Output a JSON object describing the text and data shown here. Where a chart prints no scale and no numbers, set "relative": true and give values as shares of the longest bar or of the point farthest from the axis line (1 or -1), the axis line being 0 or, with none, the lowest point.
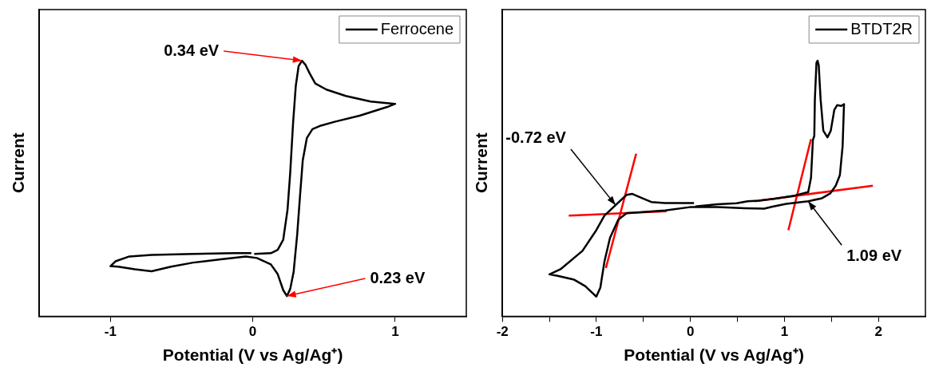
{
  "chart_data": [
    {
      "type": "line",
      "xlabel": "Potential (V vs Ag/Ag⁺)",
      "ylabel": "Current",
      "relative": true,
      "xlim": [
        -1.5,
        1.5
      ],
      "xticks": [
        -1,
        0,
        1
      ],
      "grid": false,
      "legend": "top right",
      "marker": "none",
      "series": [
        {
          "name": "Ferrocene",
          "color": "#000000",
          "x": [
            0.01,
            0.127,
            0.175,
            0.214,
            0.244,
            0.263,
            0.283,
            0.302,
            0.322,
            0.345,
            0.37,
            0.4,
            0.439,
            0.517,
            0.653,
            0.828,
            1.0,
            0.945,
            0.75,
            0.575,
            0.478,
            0.419,
            0.38,
            0.351,
            0.331,
            0.312,
            0.287,
            0.263,
            0.24,
            0.214,
            0.175,
            0.127,
            0.029,
            -0.049,
            -0.224,
            -0.419,
            -0.575,
            -0.711,
            -0.828,
            -0.945,
            -1.0,
            -0.965,
            -0.867,
            -0.711,
            -0.419,
            -0.127,
            -0.01
          ],
          "values": [
            0.244,
            0.247,
            0.26,
            0.3,
            0.417,
            0.562,
            0.756,
            0.901,
            0.979,
            1.0,
            0.984,
            0.95,
            0.911,
            0.887,
            0.862,
            0.84,
            0.831,
            0.819,
            0.785,
            0.761,
            0.746,
            0.732,
            0.698,
            0.61,
            0.465,
            0.32,
            0.174,
            0.107,
            0.079,
            0.102,
            0.165,
            0.203,
            0.228,
            0.234,
            0.223,
            0.21,
            0.194,
            0.176,
            0.184,
            0.194,
            0.196,
            0.215,
            0.234,
            0.24,
            0.244,
            0.247,
            0.247
          ]
        }
      ],
      "annotations": [
        {
          "text": "0.34 eV",
          "x": 0.345,
          "y": 1.0
        },
        {
          "text": "0.23 eV",
          "x": 0.24,
          "y": 0.079
        }
      ]
    },
    {
      "type": "line",
      "xlabel": "Potential (V vs Ag/Ag⁺)",
      "ylabel": "Current",
      "relative": true,
      "xlim": [
        -2,
        2.5
      ],
      "xticks": [
        -2,
        {
          "value": -1.5,
          "label": null
        },
        -1,
        {
          "value": -0.5,
          "label": null
        },
        0,
        {
          "value": 0.5,
          "label": null
        },
        1,
        {
          "value": 1.5,
          "label": null
        },
        2
      ],
      "grid": false,
      "legend": "top right",
      "marker": "none",
      "series": [
        {
          "name": "BTDT2R",
          "color": "#000000",
          "x": [
            0.053,
            0.287,
            0.492,
            0.609,
            0.726,
            0.902,
            1.107,
            1.253,
            1.283,
            1.303,
            1.318,
            1.324,
            1.341,
            1.353,
            1.365,
            1.385,
            1.414,
            1.458,
            1.493,
            1.531,
            1.561,
            1.605,
            1.634,
            1.619,
            1.59,
            1.546,
            1.488,
            1.4,
            1.253,
            1.019,
            0.873,
            0.785,
            0.58,
            0.287,
            -0.006,
            -0.269,
            -0.679,
            -0.767,
            -0.855,
            -0.914,
            -0.958,
            -1.001,
            -1.045,
            -1.119,
            -1.236,
            -1.411,
            -1.499,
            -1.382,
            -1.148,
            -1.001,
            -0.914,
            -0.796,
            -0.679,
            -0.621,
            -0.533,
            -0.416,
            -0.269,
            0.038
          ],
          "values": [
            0.43,
            0.438,
            0.442,
            0.45,
            0.452,
            0.46,
            0.472,
            0.486,
            0.542,
            0.69,
            0.706,
            0.849,
            0.992,
            1.0,
            0.982,
            0.849,
            0.726,
            0.7,
            0.726,
            0.808,
            0.826,
            0.823,
            0.83,
            0.665,
            0.552,
            0.511,
            0.481,
            0.462,
            0.45,
            0.44,
            0.429,
            0.421,
            0.423,
            0.427,
            0.427,
            0.414,
            0.403,
            0.378,
            0.307,
            0.215,
            0.112,
            0.077,
            0.092,
            0.118,
            0.143,
            0.158,
            0.164,
            0.184,
            0.256,
            0.337,
            0.394,
            0.435,
            0.475,
            0.479,
            0.465,
            0.447,
            0.443,
            0.443
          ]
        },
        {
          "type": "line",
          "color": "#ff0000",
          "x": [
            -1.294,
            -0.252
          ],
          "values": [
            0.394,
            0.411
          ]
        },
        {
          "type": "line",
          "color": "#ff0000",
          "x": [
            -0.899,
            -0.577
          ],
          "values": [
            0.189,
            0.636
          ]
        },
        {
          "type": "line",
          "color": "#ff0000",
          "x": [
            0.682,
            1.941
          ],
          "values": [
            0.45,
            0.511
          ]
        },
        {
          "type": "line",
          "color": "#ff0000",
          "x": [
            1.042,
            1.283
          ],
          "values": [
            0.337,
            0.693
          ]
        }
      ],
      "annotations": [
        {
          "text": "-0.72 eV",
          "x": -0.796,
          "y": 0.435
        },
        {
          "text": "1.09 eV",
          "x": 1.253,
          "y": 0.45
        }
      ]
    }
  ]
}
